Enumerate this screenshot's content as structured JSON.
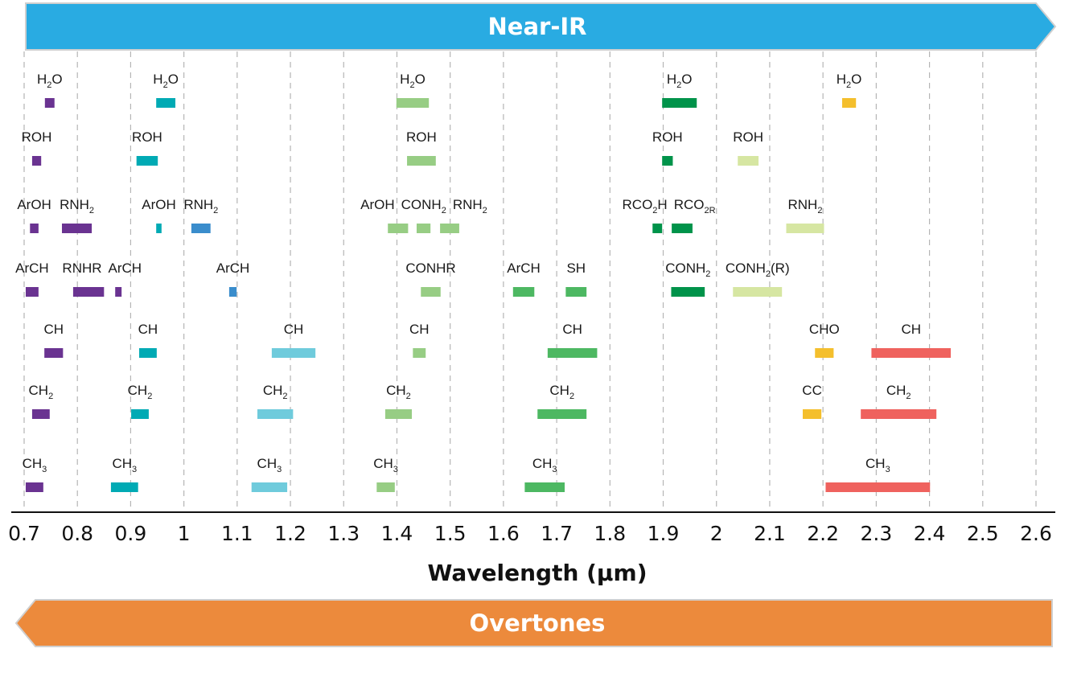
{
  "top_band": {
    "label": "Near-IR",
    "color": "#29abe2",
    "direction": "right"
  },
  "bottom_band": {
    "label": "Overtones",
    "color": "#ec8a3c",
    "direction": "left"
  },
  "chart_data": {
    "type": "range-bars",
    "xlabel": "Wavelength (µm)",
    "xlim": [
      0.7,
      2.6
    ],
    "xticks": [
      "0.7",
      "0.8",
      "0.9",
      "1",
      "1.1",
      "1.2",
      "1.3",
      "1.4",
      "1.5",
      "1.6",
      "1.7",
      "1.8",
      "1.9",
      "2",
      "2.1",
      "2.2",
      "2.3",
      "2.4",
      "2.5",
      "2.6"
    ],
    "grid": "vertical dashed",
    "colors": {
      "purple": "#6a3391",
      "teal": "#00aab4",
      "cyan": "#6fcbdc",
      "blue": "#3a8dcc",
      "lightgreen": "#97cd84",
      "green": "#4db862",
      "darkgreen": "#00934a",
      "pale": "#d6e6a2",
      "yellow": "#f4bf2d",
      "red": "#ef625e"
    },
    "rows": [
      {
        "bands": [
          {
            "label": [
              {
                "t": "H"
              },
              {
                "s": "2"
              },
              {
                "t": "O"
              }
            ],
            "start": 0.739,
            "end": 0.757,
            "color": "purple"
          },
          {
            "label": [
              {
                "t": "H"
              },
              {
                "s": "2"
              },
              {
                "t": "O"
              }
            ],
            "start": 0.948,
            "end": 0.984,
            "color": "teal"
          },
          {
            "label": [
              {
                "t": "H"
              },
              {
                "s": "2"
              },
              {
                "t": "O"
              }
            ],
            "start": 1.399,
            "end": 1.46,
            "color": "lightgreen"
          },
          {
            "label": [
              {
                "t": "H"
              },
              {
                "s": "2"
              },
              {
                "t": "O"
              }
            ],
            "start": 1.898,
            "end": 1.963,
            "color": "darkgreen"
          },
          {
            "label": [
              {
                "t": "H"
              },
              {
                "s": "2"
              },
              {
                "t": "O"
              }
            ],
            "start": 2.236,
            "end": 2.262,
            "color": "yellow"
          }
        ]
      },
      {
        "bands": [
          {
            "label": [
              {
                "t": "ROH"
              }
            ],
            "start": 0.715,
            "end": 0.732,
            "color": "purple"
          },
          {
            "label": [
              {
                "t": "ROH"
              }
            ],
            "start": 0.911,
            "end": 0.951,
            "color": "teal"
          },
          {
            "label": [
              {
                "t": "ROH"
              }
            ],
            "start": 1.419,
            "end": 1.473,
            "color": "lightgreen"
          },
          {
            "label": [
              {
                "t": "ROH"
              }
            ],
            "start": 1.898,
            "end": 1.918,
            "color": "darkgreen"
          },
          {
            "label": [
              {
                "t": "ROH"
              }
            ],
            "start": 2.04,
            "end": 2.079,
            "color": "pale"
          }
        ]
      },
      {
        "bands": [
          {
            "label": [
              {
                "t": "ArOH"
              }
            ],
            "start": 0.711,
            "end": 0.727,
            "color": "purple"
          },
          {
            "label": [
              {
                "t": "RNH"
              },
              {
                "s": "2"
              }
            ],
            "start": 0.771,
            "end": 0.827,
            "color": "purple"
          },
          {
            "label": [
              {
                "t": "ArOH"
              }
            ],
            "start": 0.948,
            "end": 0.958,
            "color": "teal"
          },
          {
            "label": [
              {
                "t": "RNH"
              },
              {
                "s": "2"
              }
            ],
            "start": 1.014,
            "end": 1.05,
            "color": "blue"
          },
          {
            "label": [
              {
                "t": "ArOH"
              }
            ],
            "start": 1.383,
            "end": 1.421,
            "color": "lightgreen"
          },
          {
            "label": [
              {
                "t": "CONH"
              },
              {
                "s": "2"
              }
            ],
            "start": 1.437,
            "end": 1.463,
            "color": "lightgreen"
          },
          {
            "label": [
              {
                "t": "RNH"
              },
              {
                "s": "2"
              }
            ],
            "start": 1.481,
            "end": 1.517,
            "color": "lightgreen"
          },
          {
            "label": [
              {
                "t": "RCO"
              },
              {
                "s": "2"
              },
              {
                "t": "H"
              }
            ],
            "start": 1.88,
            "end": 1.898,
            "color": "darkgreen"
          },
          {
            "label": [
              {
                "t": "RCO"
              },
              {
                "s": "2R"
              }
            ],
            "start": 1.916,
            "end": 1.955,
            "color": "darkgreen"
          },
          {
            "label": [
              {
                "t": "RNH"
              },
              {
                "s": "2"
              }
            ],
            "start": 2.131,
            "end": 2.202,
            "color": "pale"
          }
        ]
      },
      {
        "bands": [
          {
            "label": [
              {
                "t": "ArCH"
              }
            ],
            "start": 0.703,
            "end": 0.727,
            "color": "purple"
          },
          {
            "label": [
              {
                "t": "RNHR"
              }
            ],
            "start": 0.792,
            "end": 0.85,
            "color": "purple"
          },
          {
            "label": [
              {
                "t": "ArCH"
              }
            ],
            "start": 0.871,
            "end": 0.883,
            "color": "purple"
          },
          {
            "label": [
              {
                "t": "ArCH"
              }
            ],
            "start": 1.085,
            "end": 1.099,
            "color": "blue"
          },
          {
            "label": [
              {
                "t": "CONHR"
              }
            ],
            "start": 1.445,
            "end": 1.482,
            "color": "lightgreen"
          },
          {
            "label": [
              {
                "t": "ArCH"
              }
            ],
            "start": 1.618,
            "end": 1.658,
            "color": "green"
          },
          {
            "label": [
              {
                "t": "SH"
              }
            ],
            "start": 1.717,
            "end": 1.756,
            "color": "green"
          },
          {
            "label": [
              {
                "t": "CONH"
              },
              {
                "s": "2"
              }
            ],
            "start": 1.915,
            "end": 1.978,
            "color": "darkgreen"
          },
          {
            "label": [
              {
                "t": "CONH"
              },
              {
                "s": "2"
              },
              {
                "t": "(R)"
              }
            ],
            "start": 2.031,
            "end": 2.123,
            "color": "pale"
          }
        ]
      },
      {
        "bands": [
          {
            "label": [
              {
                "t": "CH"
              }
            ],
            "start": 0.738,
            "end": 0.773,
            "color": "purple"
          },
          {
            "label": [
              {
                "t": "CH"
              }
            ],
            "start": 0.916,
            "end": 0.949,
            "color": "teal"
          },
          {
            "label": [
              {
                "t": "CH"
              }
            ],
            "start": 1.165,
            "end": 1.247,
            "color": "cyan"
          },
          {
            "label": [
              {
                "t": "CH"
              }
            ],
            "start": 1.43,
            "end": 1.454,
            "color": "lightgreen"
          },
          {
            "label": [
              {
                "t": "CH"
              }
            ],
            "start": 1.683,
            "end": 1.776,
            "color": "green"
          },
          {
            "label": [
              {
                "t": "CHO"
              }
            ],
            "start": 2.185,
            "end": 2.22,
            "color": "yellow"
          },
          {
            "label": [
              {
                "t": "CH"
              }
            ],
            "start": 2.291,
            "end": 2.44,
            "color": "red"
          }
        ]
      },
      {
        "bands": [
          {
            "label": [
              {
                "t": "CH"
              },
              {
                "s": "2"
              }
            ],
            "start": 0.715,
            "end": 0.748,
            "color": "purple"
          },
          {
            "label": [
              {
                "t": "CH"
              },
              {
                "s": "2"
              }
            ],
            "start": 0.901,
            "end": 0.934,
            "color": "teal"
          },
          {
            "label": [
              {
                "t": "CH"
              },
              {
                "s": "2"
              }
            ],
            "start": 1.138,
            "end": 1.205,
            "color": "cyan"
          },
          {
            "label": [
              {
                "t": "CH"
              },
              {
                "s": "2"
              }
            ],
            "start": 1.378,
            "end": 1.428,
            "color": "lightgreen"
          },
          {
            "label": [
              {
                "t": "CH"
              },
              {
                "s": "2"
              }
            ],
            "start": 1.664,
            "end": 1.756,
            "color": "green"
          },
          {
            "label": [
              {
                "t": "CC"
              }
            ],
            "start": 2.162,
            "end": 2.197,
            "color": "yellow"
          },
          {
            "label": [
              {
                "t": "CH"
              },
              {
                "s": "2"
              }
            ],
            "start": 2.271,
            "end": 2.413,
            "color": "red"
          }
        ]
      },
      {
        "bands": [
          {
            "label": [
              {
                "t": "CH"
              },
              {
                "s": "3"
              }
            ],
            "start": 0.703,
            "end": 0.736,
            "color": "purple"
          },
          {
            "label": [
              {
                "t": "CH"
              },
              {
                "s": "3"
              }
            ],
            "start": 0.863,
            "end": 0.914,
            "color": "teal"
          },
          {
            "label": [
              {
                "t": "CH"
              },
              {
                "s": "3"
              }
            ],
            "start": 1.127,
            "end": 1.194,
            "color": "cyan"
          },
          {
            "label": [
              {
                "t": "CH"
              },
              {
                "s": "3"
              }
            ],
            "start": 1.362,
            "end": 1.396,
            "color": "lightgreen"
          },
          {
            "label": [
              {
                "t": "CH"
              },
              {
                "s": "3"
              }
            ],
            "start": 1.64,
            "end": 1.715,
            "color": "green"
          },
          {
            "label": [
              {
                "t": "CH"
              },
              {
                "s": "3"
              }
            ],
            "start": 2.205,
            "end": 2.401,
            "color": "red"
          }
        ]
      }
    ]
  }
}
